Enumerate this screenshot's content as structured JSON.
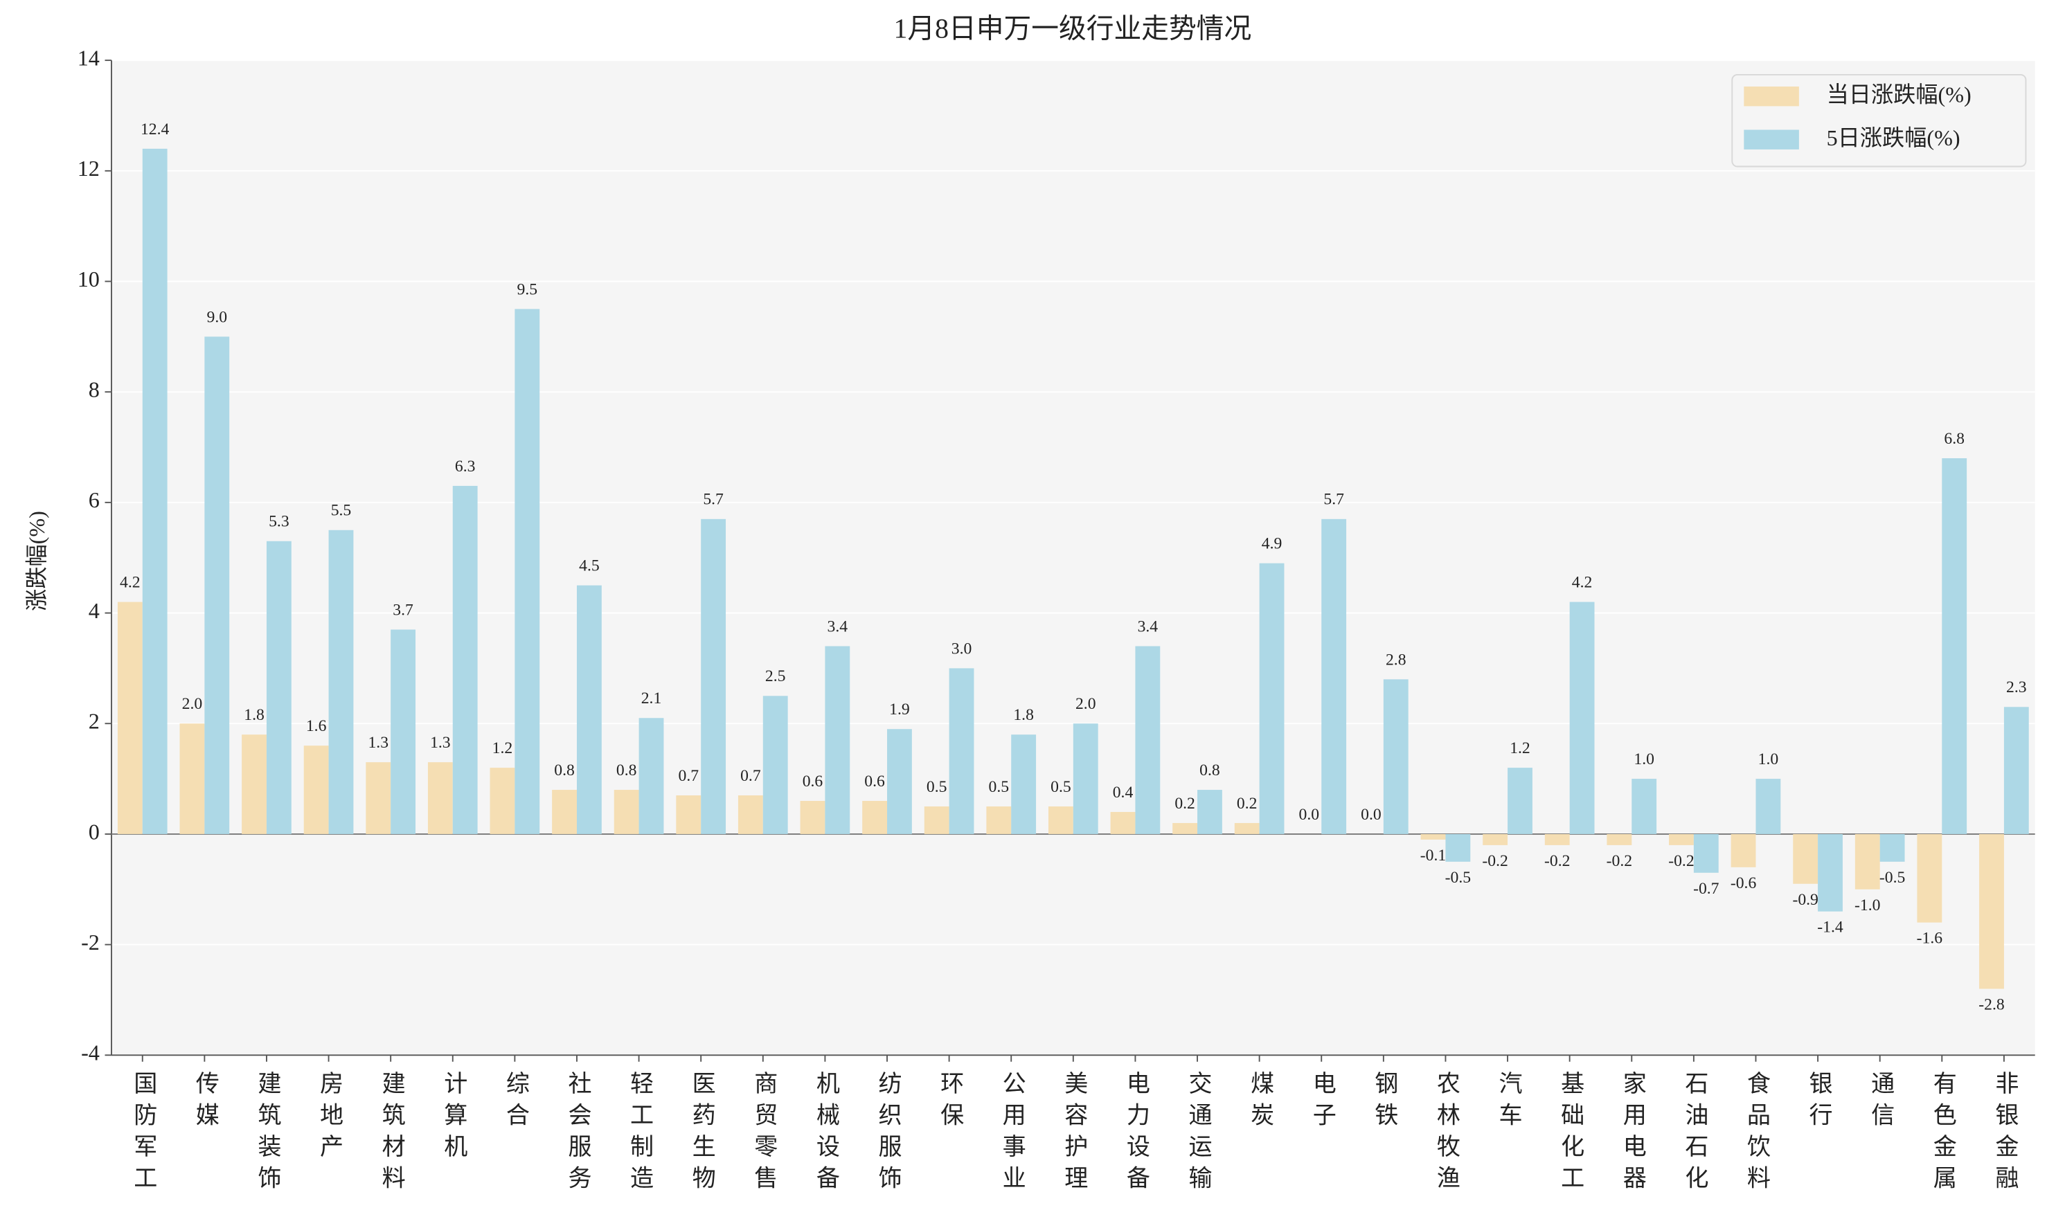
{
  "chart_data": {
    "type": "bar",
    "title": "1月8日申万一级行业走势情况",
    "ylabel": "涨跌幅(%)",
    "categories": [
      "国防军工",
      "传媒",
      "建筑装饰",
      "房地产",
      "建筑材料",
      "计算机",
      "综合",
      "社会服务",
      "轻工制造",
      "医药生物",
      "商贸零售",
      "机械设备",
      "纺织服饰",
      "环保",
      "公用事业",
      "美容护理",
      "电力设备",
      "交通运输",
      "煤炭",
      "电子",
      "钢铁",
      "农林牧渔",
      "汽车",
      "基础化工",
      "家用电器",
      "石油石化",
      "食品饮料",
      "银行",
      "通信",
      "有色金属",
      "非银金融"
    ],
    "series": [
      {
        "name": "当日涨跌幅(%)",
        "color": "#f5deb3",
        "values": [
          4.2,
          2,
          1.8,
          1.6,
          1.3,
          1.3,
          1.2,
          0.8,
          0.8,
          0.7,
          0.7,
          0.6,
          0.6,
          0.5,
          0.5,
          0.5,
          0.4,
          0.2,
          0.2,
          0,
          0,
          -0.1,
          -0.2,
          -0.2,
          -0.2,
          -0.2,
          -0.6,
          -0.9,
          -1,
          -1.6,
          -2.8
        ],
        "value_labels": [
          "4.2",
          "2.0",
          "1.8",
          "1.6",
          "1.3",
          "1.3",
          "1.2",
          "0.8",
          "0.8",
          "0.7",
          "0.7",
          "0.6",
          "0.6",
          "0.5",
          "0.5",
          "0.5",
          "0.4",
          "0.2",
          "0.2",
          "0.0",
          "0.0",
          "-0.1",
          "-0.2",
          "-0.2",
          "-0.2",
          "-0.2",
          "-0.6",
          "-0.9",
          "-1.0",
          "-1.6",
          "-2.8"
        ]
      },
      {
        "name": "5日涨跌幅(%)",
        "color": "#add8e6",
        "values": [
          12.4,
          9,
          5.3,
          5.5,
          3.7,
          6.3,
          9.5,
          4.5,
          2.1,
          5.7,
          2.5,
          3.4,
          1.9,
          3,
          1.8,
          2,
          3.4,
          0.8,
          4.9,
          5.7,
          2.8,
          -0.5,
          1.2,
          4.2,
          1,
          -0.7,
          1,
          -1.4,
          -0.5,
          6.8,
          2.3
        ],
        "value_labels": [
          "12.4",
          "9.0",
          "5.3",
          "5.5",
          "3.7",
          "6.3",
          "9.5",
          "4.5",
          "2.1",
          "5.7",
          "2.5",
          "3.4",
          "1.9",
          "3.0",
          "1.8",
          "2.0",
          "3.4",
          "0.8",
          "4.9",
          "5.7",
          "2.8",
          "-0.5",
          "1.2",
          "4.2",
          "1.0",
          "-0.7",
          "1.0",
          "-1.4",
          "-0.5",
          "6.8",
          "2.3"
        ]
      }
    ],
    "ylim": [
      -4,
      14
    ],
    "yticks": [
      -4,
      -2,
      0,
      2,
      4,
      6,
      8,
      10,
      12,
      14
    ],
    "grid": true,
    "legend": "upper right"
  }
}
